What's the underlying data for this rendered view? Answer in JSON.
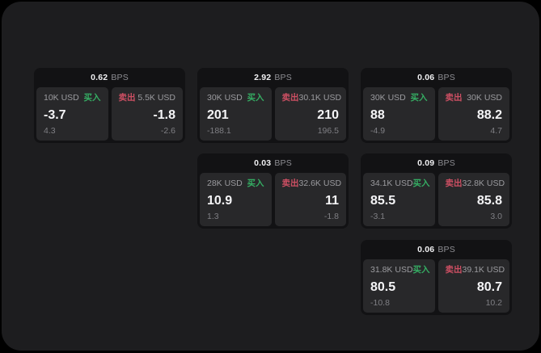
{
  "labels": {
    "buy": "买入",
    "sell": "卖出",
    "bps": "BPS"
  },
  "colors": {
    "background": "#000000",
    "window_bg": "#1d1d1f",
    "card_bg": "#121214",
    "panel_bg": "#28282a",
    "buy_green": "#35ad63",
    "sell_red": "#cd4f63",
    "value_white": "#f5f5f7",
    "label_gray": "#9b9b9f"
  },
  "cards": [
    {
      "bps": "0.62",
      "buy": {
        "notional": "10K USD",
        "value": "-3.7",
        "delta": "4.3"
      },
      "sell": {
        "notional": "5.5K USD",
        "value": "-1.8",
        "delta": "-2.6"
      }
    },
    {
      "bps": "2.92",
      "buy": {
        "notional": "30K USD",
        "value": "201",
        "delta": "-188.1"
      },
      "sell": {
        "notional": "30.1K USD",
        "value": "210",
        "delta": "196.5"
      }
    },
    {
      "bps": "0.06",
      "buy": {
        "notional": "30K USD",
        "value": "88",
        "delta": "-4.9"
      },
      "sell": {
        "notional": "30K USD",
        "value": "88.2",
        "delta": "4.7"
      }
    },
    {
      "bps": "0.03",
      "buy": {
        "notional": "28K USD",
        "value": "10.9",
        "delta": "1.3"
      },
      "sell": {
        "notional": "32.6K USD",
        "value": "11",
        "delta": "-1.8"
      }
    },
    {
      "bps": "0.09",
      "buy": {
        "notional": "34.1K USD",
        "value": "85.5",
        "delta": "-3.1"
      },
      "sell": {
        "notional": "32.8K USD",
        "value": "85.8",
        "delta": "3.0"
      }
    },
    {
      "bps": "0.06",
      "buy": {
        "notional": "31.8K USD",
        "value": "80.5",
        "delta": "-10.8"
      },
      "sell": {
        "notional": "39.1K USD",
        "value": "80.7",
        "delta": "10.2"
      }
    }
  ]
}
